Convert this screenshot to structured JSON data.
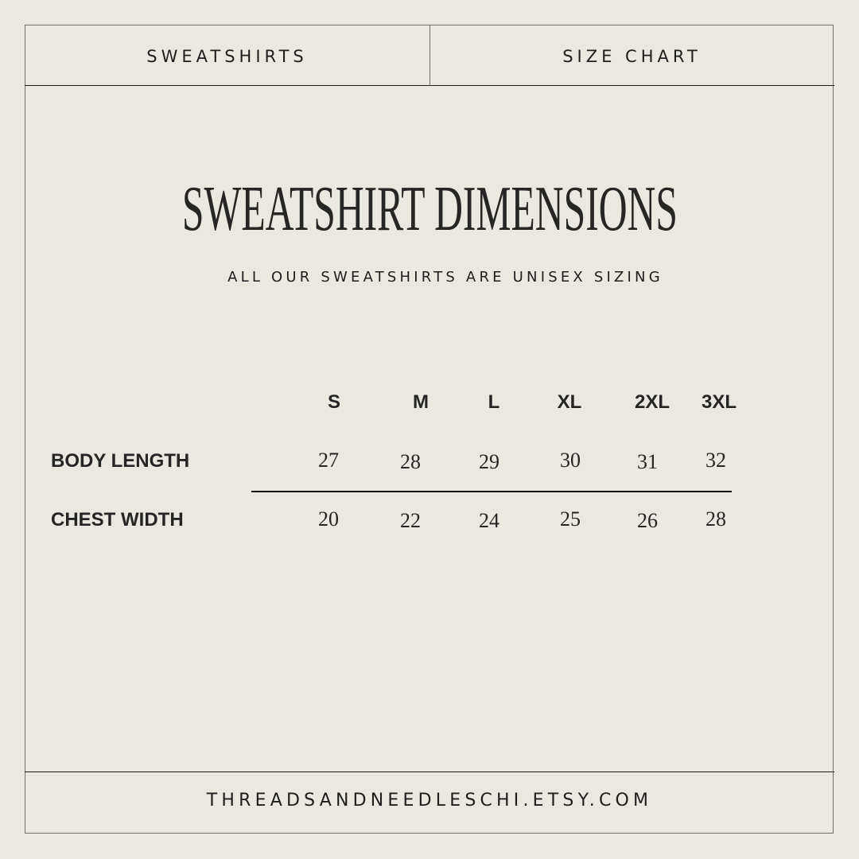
{
  "header": {
    "left_tab": "SWEATSHIRTS",
    "right_tab": "SIZE CHART"
  },
  "title": "SWEATSHIRT DIMENSIONS",
  "subtitle": "ALL OUR SWEATSHIRTS ARE UNISEX SIZING",
  "table": {
    "sizes": [
      "S",
      "M",
      "L",
      "XL",
      "2XL",
      "3XL"
    ],
    "rows": [
      {
        "label": "BODY LENGTH",
        "values": [
          "27",
          "28",
          "29",
          "30",
          "31",
          "32"
        ]
      },
      {
        "label": "CHEST WIDTH",
        "values": [
          "20",
          "22",
          "24",
          "25",
          "26",
          "28"
        ]
      }
    ]
  },
  "footer": "THREADSANDNEEDLESCHI.ETSY.COM",
  "colors": {
    "background": "#ebe8e1",
    "text": "#222222",
    "border": "#6f6d69"
  }
}
